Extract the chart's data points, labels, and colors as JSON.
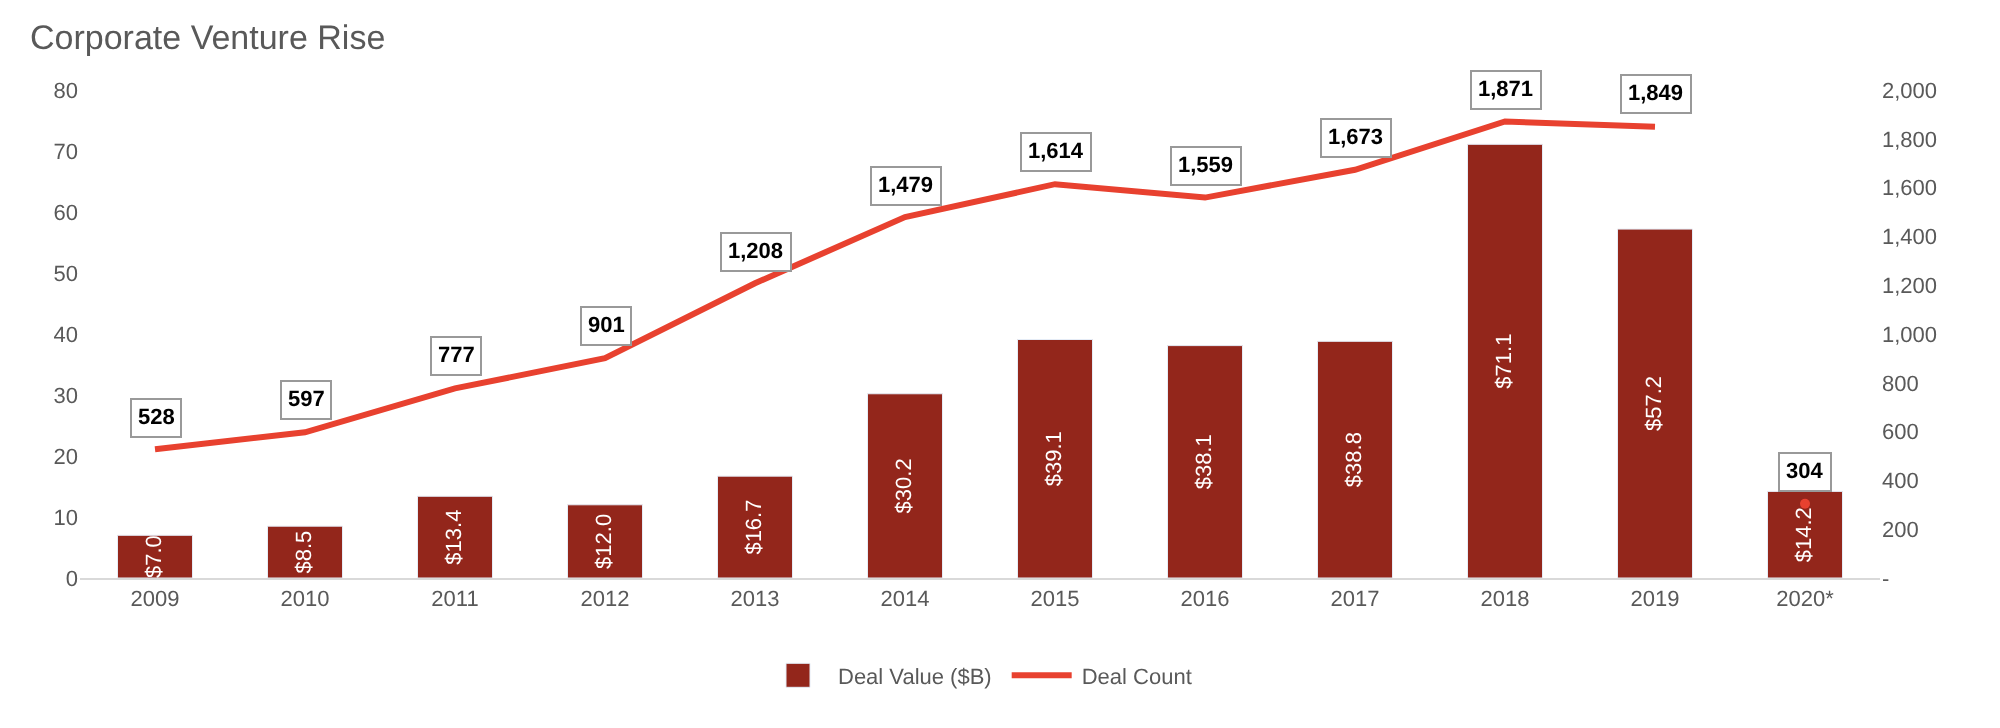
{
  "chart_data": {
    "type": "bar",
    "title": "Corporate Venture Rise",
    "categories": [
      "2009",
      "2010",
      "2011",
      "2012",
      "2013",
      "2014",
      "2015",
      "2016",
      "2017",
      "2018",
      "2019",
      "2020*"
    ],
    "series": [
      {
        "name": "Deal Value ($B)",
        "color": "#93261b",
        "values": [
          7.0,
          8.5,
          13.4,
          12.0,
          16.7,
          30.2,
          39.1,
          38.1,
          38.8,
          71.1,
          57.2,
          14.2
        ],
        "value_labels": [
          "$7.0",
          "$8.5",
          "$13.4",
          "$12.0",
          "$16.7",
          "$30.2",
          "$39.1",
          "$38.1",
          "$38.8",
          "$71.1",
          "$57.2",
          "$14.2"
        ]
      },
      {
        "name": "Deal Count",
        "type": "line",
        "axis": "y2",
        "color": "#e8412f",
        "values": [
          528,
          597,
          777,
          901,
          1208,
          1479,
          1614,
          1559,
          1673,
          1871,
          1849,
          null
        ],
        "value_labels": [
          "528",
          "597",
          "777",
          "901",
          "1,208",
          "1,479",
          "1,614",
          "1,559",
          "1,673",
          "1,871",
          "1,849",
          null
        ]
      },
      {
        "type": "scatter",
        "axis": "y2",
        "marker": "circle",
        "color": "#e8412f",
        "values": [
          null,
          null,
          null,
          null,
          null,
          null,
          null,
          null,
          null,
          null,
          null,
          304
        ],
        "value_labels": [
          null,
          null,
          null,
          null,
          null,
          null,
          null,
          null,
          null,
          null,
          null,
          "304"
        ]
      }
    ],
    "ylim": [
      0,
      80
    ],
    "yticks": [
      0,
      10,
      20,
      30,
      40,
      50,
      60,
      70,
      80
    ],
    "y2lim": [
      0,
      2000
    ],
    "y2ticks": [
      {
        "value": 0,
        "label": "-"
      },
      {
        "value": 200,
        "label": "200"
      },
      {
        "value": 400,
        "label": "400"
      },
      {
        "value": 600,
        "label": "600"
      },
      {
        "value": 800,
        "label": "800"
      },
      {
        "value": 1000,
        "label": "1,000"
      },
      {
        "value": 1200,
        "label": "1,200"
      },
      {
        "value": 1400,
        "label": "1,400"
      },
      {
        "value": 1600,
        "label": "1,600"
      },
      {
        "value": 1800,
        "label": "1,800"
      },
      {
        "value": 2000,
        "label": "2,000"
      }
    ],
    "legend": "bottom"
  }
}
